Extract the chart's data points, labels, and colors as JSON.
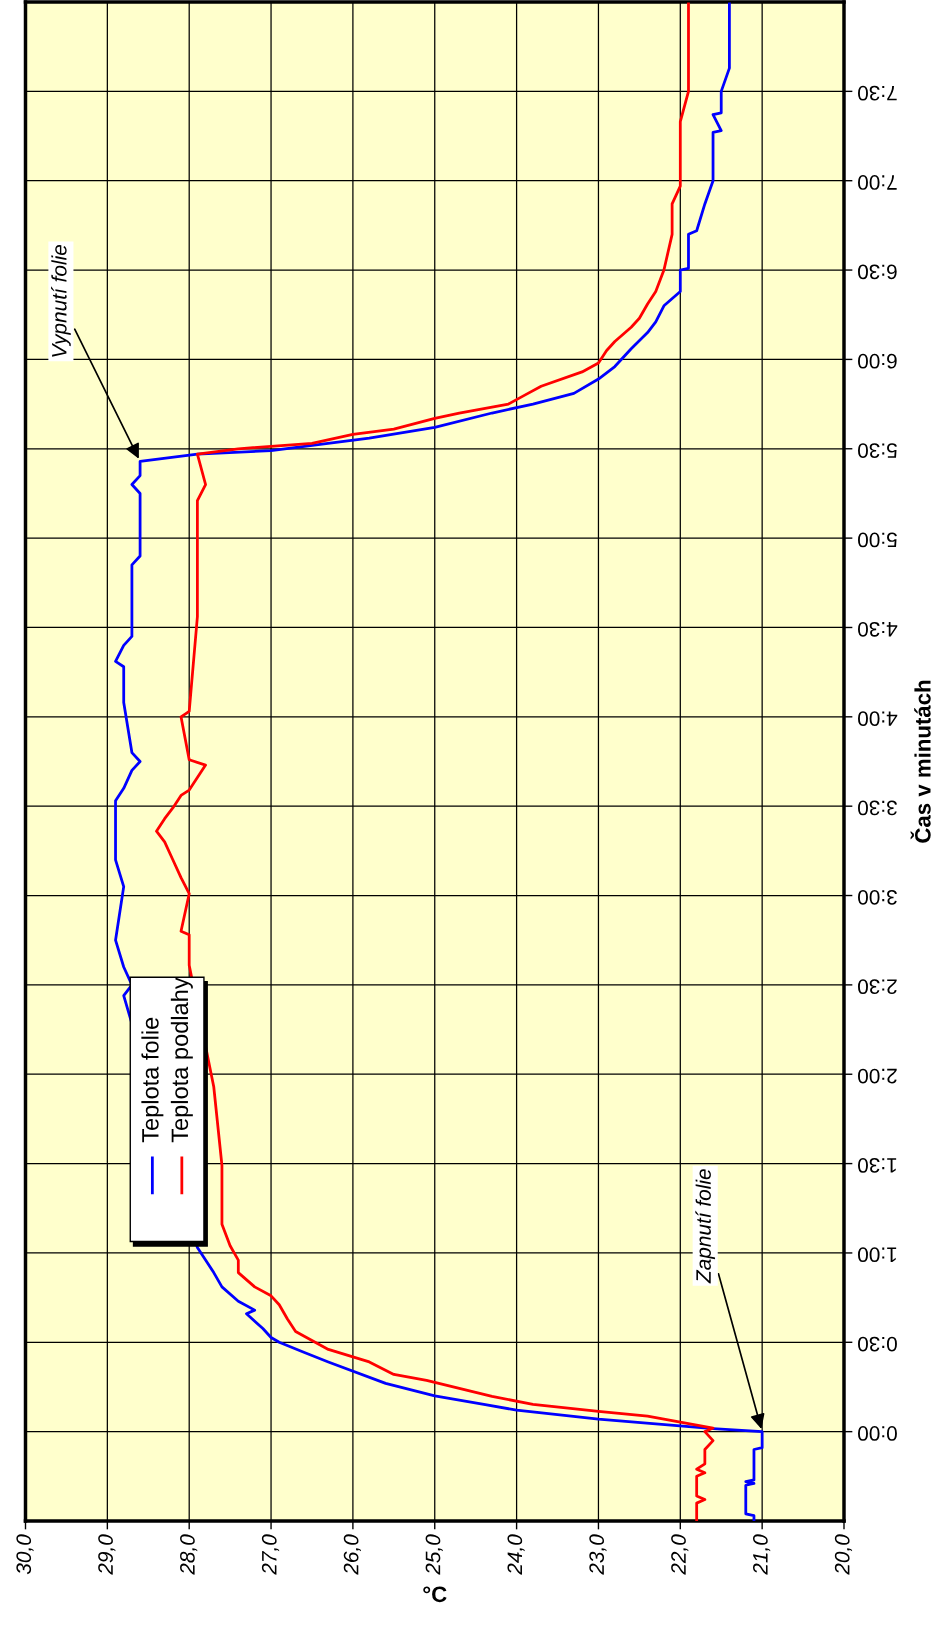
{
  "chart_data": {
    "type": "line",
    "xlabel": "°C",
    "ylabel": "Čas v minutách",
    "xlim": [
      30,
      20
    ],
    "ylim": [
      -0.5,
      8.0
    ],
    "xticks": [
      {
        "value": 20,
        "label": "20,0"
      },
      {
        "value": 21,
        "label": "21,0"
      },
      {
        "value": 22,
        "label": "22,0"
      },
      {
        "value": 23,
        "label": "23,0"
      },
      {
        "value": 24,
        "label": "24,0"
      },
      {
        "value": 25,
        "label": "25,0"
      },
      {
        "value": 26,
        "label": "26,0"
      },
      {
        "value": 27,
        "label": "27,0"
      },
      {
        "value": 28,
        "label": "28,0"
      },
      {
        "value": 29,
        "label": "29,0"
      },
      {
        "value": 30,
        "label": "30,0"
      }
    ],
    "yticks": [
      {
        "value": 0,
        "label": "0:00"
      },
      {
        "value": 0.5,
        "label": "0:30"
      },
      {
        "value": 1,
        "label": "1:00"
      },
      {
        "value": 1.5,
        "label": "1:30"
      },
      {
        "value": 2,
        "label": "2:00"
      },
      {
        "value": 2.5,
        "label": "2:30"
      },
      {
        "value": 3,
        "label": "3:00"
      },
      {
        "value": 3.5,
        "label": "3:30"
      },
      {
        "value": 4,
        "label": "4:00"
      },
      {
        "value": 4.5,
        "label": "4:30"
      },
      {
        "value": 5,
        "label": "5:00"
      },
      {
        "value": 5.5,
        "label": "5:30"
      },
      {
        "value": 6,
        "label": "6:00"
      },
      {
        "value": 6.5,
        "label": "6:30"
      },
      {
        "value": 7,
        "label": "7:00"
      },
      {
        "value": 7.5,
        "label": "7:30"
      }
    ],
    "grid": true,
    "legend": "left",
    "marker": "none",
    "line_style": "solid",
    "series": [
      {
        "name": "Teplota folie",
        "color": "#0000ff",
        "values": [
          -0.5,
          -0.47,
          -0.46,
          -0.3,
          -0.29,
          -0.28,
          -0.27,
          -0.1,
          -0.09,
          0.0,
          0.017,
          0.07,
          0.12,
          0.153,
          0.2,
          0.27,
          0.39,
          0.444,
          0.5,
          0.527,
          0.577,
          0.66,
          0.68,
          0.73,
          0.81,
          0.89,
          0.96,
          1.03,
          2.44,
          2.5,
          2.6,
          2.75,
          3.05,
          3.2,
          3.24,
          3.53,
          3.6,
          3.7,
          3.75,
          3.8,
          4.08,
          4.28,
          4.31,
          4.4,
          4.45,
          4.5,
          4.85,
          4.9,
          4.95,
          5.25,
          5.3,
          5.35,
          5.43,
          5.47,
          5.49,
          5.56,
          5.62,
          5.7,
          5.75,
          5.81,
          5.89,
          5.96,
          6.06,
          6.15,
          6.21,
          6.3,
          6.38,
          6.5,
          6.51,
          6.7,
          6.72,
          6.87,
          7.0,
          7.27,
          7.28,
          7.37,
          7.38,
          7.5,
          7.63,
          7.99
        ],
        "x": [
          21.1,
          21.1,
          21.2,
          21.2,
          21.1,
          21.2,
          21.1,
          21.1,
          21.0,
          21.0,
          21.6,
          23.0,
          24.0,
          24.4,
          25.0,
          25.6,
          26.3,
          26.6,
          26.9,
          27.0,
          27.1,
          27.3,
          27.2,
          27.4,
          27.6,
          27.7,
          27.8,
          27.9,
          28.8,
          28.7,
          28.8,
          28.9,
          28.8,
          28.9,
          28.9,
          28.9,
          28.8,
          28.7,
          28.6,
          28.7,
          28.8,
          28.8,
          28.9,
          28.8,
          28.7,
          28.7,
          28.7,
          28.6,
          28.6,
          28.6,
          28.7,
          28.6,
          28.6,
          27.9,
          27.0,
          25.8,
          25.0,
          24.3,
          23.8,
          23.3,
          23.0,
          22.8,
          22.6,
          22.4,
          22.3,
          22.2,
          22.0,
          22.0,
          21.9,
          21.9,
          21.8,
          21.7,
          21.6,
          21.6,
          21.5,
          21.6,
          21.5,
          21.5,
          21.4,
          21.4
        ]
      },
      {
        "name": "Teplota podlahy",
        "color": "#ff0000",
        "values": [
          -0.5,
          -0.4,
          -0.38,
          -0.36,
          -0.25,
          -0.23,
          -0.21,
          -0.18,
          -0.1,
          -0.05,
          0.0,
          0.02,
          0.053,
          0.087,
          0.113,
          0.153,
          0.197,
          0.287,
          0.32,
          0.39,
          0.46,
          0.51,
          0.56,
          0.63,
          0.71,
          0.76,
          0.81,
          0.89,
          0.96,
          1.04,
          1.16,
          1.21,
          1.33,
          1.49,
          1.93,
          2.61,
          2.78,
          2.8,
          3.01,
          3.1,
          3.2,
          3.3,
          3.36,
          3.43,
          3.49,
          3.56,
          3.59,
          3.73,
          3.76,
          4.0,
          4.03,
          4.56,
          5.21,
          5.3,
          5.47,
          5.5,
          5.53,
          5.58,
          5.61,
          5.67,
          5.7,
          5.75,
          5.8,
          5.85,
          5.93,
          5.98,
          6.05,
          6.1,
          6.18,
          6.23,
          6.31,
          6.38,
          6.5,
          6.7,
          6.87,
          6.97,
          7.33,
          7.5,
          7.99
        ],
        "x": [
          21.8,
          21.8,
          21.7,
          21.8,
          21.8,
          21.7,
          21.8,
          21.7,
          21.7,
          21.6,
          21.7,
          21.6,
          22.0,
          22.4,
          23.0,
          23.8,
          24.3,
          25.1,
          25.5,
          25.8,
          26.3,
          26.5,
          26.7,
          26.8,
          26.9,
          27.0,
          27.2,
          27.4,
          27.4,
          27.5,
          27.6,
          27.6,
          27.6,
          27.6,
          27.7,
          28.0,
          28.0,
          28.1,
          28.0,
          28.1,
          28.2,
          28.3,
          28.4,
          28.3,
          28.2,
          28.1,
          28.0,
          27.8,
          28.0,
          28.1,
          28.0,
          27.9,
          27.9,
          27.8,
          27.9,
          27.4,
          26.5,
          26.0,
          25.5,
          25.0,
          24.7,
          24.1,
          23.9,
          23.7,
          23.2,
          23.0,
          22.9,
          22.8,
          22.6,
          22.5,
          22.4,
          22.3,
          22.2,
          22.1,
          22.1,
          22.0,
          22.0,
          21.9,
          21.9
        ]
      }
    ],
    "annotations": [
      {
        "text": "Zapnutí folie",
        "x": 21.0,
        "y": 0.0
      },
      {
        "text": "Vypnutí folie",
        "x": 28.6,
        "y": 5.43
      }
    ]
  }
}
